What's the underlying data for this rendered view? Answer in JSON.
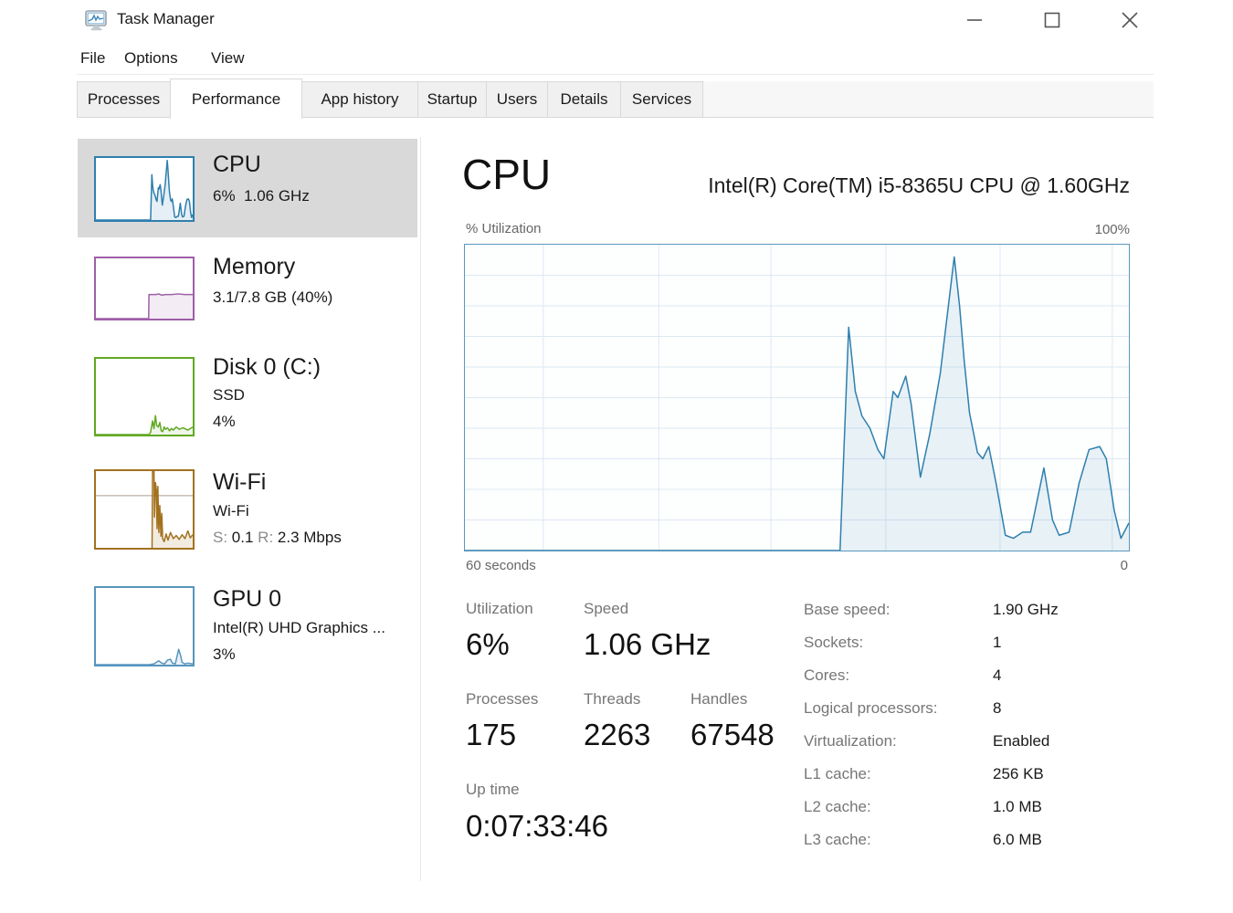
{
  "window": {
    "title": "Task Manager"
  },
  "titlebar_icons": {
    "app": "task-manager-monitor-graph",
    "minimize": "dash",
    "maximize": "square",
    "close": "x"
  },
  "menu": {
    "items": [
      "File",
      "Options",
      "View"
    ]
  },
  "tabs": [
    "Processes",
    "Performance",
    "App history",
    "Startup",
    "Users",
    "Details",
    "Services"
  ],
  "active_tab": "Performance",
  "sidebar": [
    {
      "title": "CPU",
      "line1": "6%  1.06 GHz"
    },
    {
      "title": "Memory",
      "line1": "3.1/7.8 GB (40%)"
    },
    {
      "title": "Disk 0 (C:)",
      "line1": "SSD",
      "line2": "4%"
    },
    {
      "title": "Wi-Fi",
      "line1": "Wi-Fi",
      "s_label": "S: ",
      "s_value": "0.1",
      "r_label": " R: ",
      "r_value": "2.3 Mbps"
    },
    {
      "title": "GPU 0",
      "line1": "Intel(R) UHD Graphics ...",
      "line2": "3%"
    }
  ],
  "main": {
    "heading": "CPU",
    "subtitle": "Intel(R) Core(TM) i5-8365U CPU @ 1.60GHz",
    "axis": {
      "top_left": "% Utilization",
      "top_right": "100%",
      "bottom_left": "60 seconds",
      "bottom_right": "0"
    },
    "stats": {
      "utilization": {
        "label": "Utilization",
        "value": "6%"
      },
      "speed": {
        "label": "Speed",
        "value": "1.06 GHz"
      },
      "processes": {
        "label": "Processes",
        "value": "175"
      },
      "threads": {
        "label": "Threads",
        "value": "2263"
      },
      "handles": {
        "label": "Handles",
        "value": "67548"
      },
      "uptime": {
        "label": "Up time",
        "value": "0:07:33:46"
      }
    },
    "details": [
      {
        "label": "Base speed:",
        "value": "1.90 GHz"
      },
      {
        "label": "Sockets:",
        "value": "1"
      },
      {
        "label": "Cores:",
        "value": "4"
      },
      {
        "label": "Logical processors:",
        "value": "8"
      },
      {
        "label": "Virtualization:",
        "value": "Enabled"
      },
      {
        "label": "L1 cache:",
        "value": "256 KB"
      },
      {
        "label": "L2 cache:",
        "value": "1.0 MB"
      },
      {
        "label": "L3 cache:",
        "value": "6.0 MB"
      }
    ]
  },
  "colors": {
    "cpu_accent": "#2e7fae",
    "memory_accent": "#9e5fa7",
    "disk_accent": "#61a823",
    "wifi_accent": "#a2711f",
    "gpu_accent": "#5795bd",
    "selected_bg": "#d9d9d9",
    "grid": "#dce9f3"
  },
  "charts": {
    "cpu_main": {
      "border": "#5b97bd",
      "line": "#2e7fae",
      "fill": "rgba(46,127,174,0.10)",
      "grid": "#dce9f3",
      "grid_h": [
        0.1,
        0.2,
        0.3,
        0.4,
        0.5,
        0.6,
        0.7,
        0.8,
        0.9
      ],
      "grid_v": [
        0.118,
        0.292,
        0.461,
        0.634,
        0.806,
        0.975
      ],
      "points": [
        [
          0,
          0
        ],
        [
          0.555,
          0
        ],
        [
          0.565,
          0
        ],
        [
          0.578,
          73
        ],
        [
          0.588,
          52
        ],
        [
          0.598,
          44
        ],
        [
          0.61,
          40
        ],
        [
          0.622,
          33
        ],
        [
          0.631,
          30
        ],
        [
          0.645,
          52
        ],
        [
          0.652,
          50
        ],
        [
          0.664,
          57
        ],
        [
          0.672,
          48
        ],
        [
          0.686,
          24
        ],
        [
          0.7,
          38
        ],
        [
          0.716,
          58
        ],
        [
          0.737,
          96
        ],
        [
          0.745,
          80
        ],
        [
          0.752,
          62
        ],
        [
          0.76,
          45
        ],
        [
          0.772,
          32
        ],
        [
          0.78,
          30
        ],
        [
          0.789,
          34
        ],
        [
          0.8,
          22
        ],
        [
          0.814,
          5
        ],
        [
          0.826,
          4
        ],
        [
          0.84,
          6
        ],
        [
          0.852,
          6
        ],
        [
          0.872,
          27
        ],
        [
          0.885,
          10
        ],
        [
          0.895,
          5
        ],
        [
          0.91,
          6
        ],
        [
          0.925,
          22
        ],
        [
          0.94,
          33
        ],
        [
          0.956,
          34
        ],
        [
          0.966,
          30
        ],
        [
          0.978,
          13
        ],
        [
          0.988,
          4
        ],
        [
          1,
          9
        ]
      ]
    },
    "cpu_thumb": {
      "border": "#2e7fae",
      "line": "#2e7fae",
      "fill": "rgba(46,127,174,0.12)",
      "same_points_as": "cpu_main"
    },
    "memory_thumb": {
      "border": "#9e5fa7",
      "line": "#9e5fa7",
      "fill": "rgba(158,95,167,0.12)",
      "points": [
        [
          0,
          0
        ],
        [
          0.545,
          0
        ],
        [
          0.548,
          40
        ],
        [
          0.62,
          40
        ],
        [
          0.65,
          41
        ],
        [
          0.68,
          39
        ],
        [
          0.72,
          40
        ],
        [
          0.78,
          40
        ],
        [
          0.85,
          41
        ],
        [
          0.92,
          40
        ],
        [
          1,
          40
        ]
      ]
    },
    "disk_thumb": {
      "border": "#61a823",
      "line": "#61a823",
      "fill": "rgba(97,168,35,0.10)",
      "points": [
        [
          0,
          0
        ],
        [
          0.55,
          0
        ],
        [
          0.565,
          3
        ],
        [
          0.585,
          18
        ],
        [
          0.6,
          8
        ],
        [
          0.615,
          25
        ],
        [
          0.628,
          12
        ],
        [
          0.645,
          10
        ],
        [
          0.66,
          16
        ],
        [
          0.675,
          5
        ],
        [
          0.69,
          4
        ],
        [
          0.705,
          10
        ],
        [
          0.72,
          7
        ],
        [
          0.74,
          9
        ],
        [
          0.76,
          5
        ],
        [
          0.78,
          8
        ],
        [
          0.8,
          6
        ],
        [
          0.83,
          10
        ],
        [
          0.86,
          7
        ],
        [
          0.9,
          9
        ],
        [
          0.95,
          6
        ],
        [
          1,
          10
        ]
      ]
    },
    "wifi_thumb": {
      "border": "#a2711f",
      "line": "#a2711f",
      "fill": "rgba(162,113,31,0.14)",
      "grid": "#a89e90",
      "grid_h": [
        0.32
      ],
      "points": [
        [
          0.58,
          0
        ],
        [
          0.585,
          100
        ],
        [
          0.6,
          100
        ],
        [
          0.605,
          40
        ],
        [
          0.615,
          85
        ],
        [
          0.625,
          75
        ],
        [
          0.632,
          25
        ],
        [
          0.64,
          80
        ],
        [
          0.65,
          20
        ],
        [
          0.66,
          55
        ],
        [
          0.672,
          15
        ],
        [
          0.68,
          45
        ],
        [
          0.69,
          12
        ],
        [
          0.705,
          8
        ],
        [
          0.725,
          18
        ],
        [
          0.745,
          10
        ],
        [
          0.77,
          20
        ],
        [
          0.8,
          12
        ],
        [
          0.83,
          16
        ],
        [
          0.86,
          11
        ],
        [
          0.89,
          17
        ],
        [
          0.92,
          12
        ],
        [
          0.95,
          22
        ],
        [
          0.975,
          13
        ],
        [
          1,
          17
        ]
      ]
    },
    "gpu_thumb": {
      "border": "#5795bd",
      "line": "#5795bd",
      "fill": "rgba(87,149,189,0.12)",
      "points": [
        [
          0,
          0
        ],
        [
          0.55,
          0
        ],
        [
          0.6,
          1
        ],
        [
          0.65,
          5
        ],
        [
          0.68,
          2
        ],
        [
          0.71,
          1
        ],
        [
          0.74,
          6
        ],
        [
          0.77,
          7
        ],
        [
          0.79,
          2
        ],
        [
          0.82,
          1
        ],
        [
          0.855,
          20
        ],
        [
          0.875,
          12
        ],
        [
          0.89,
          3
        ],
        [
          0.92,
          1
        ],
        [
          0.95,
          2
        ],
        [
          1,
          1
        ]
      ]
    }
  }
}
